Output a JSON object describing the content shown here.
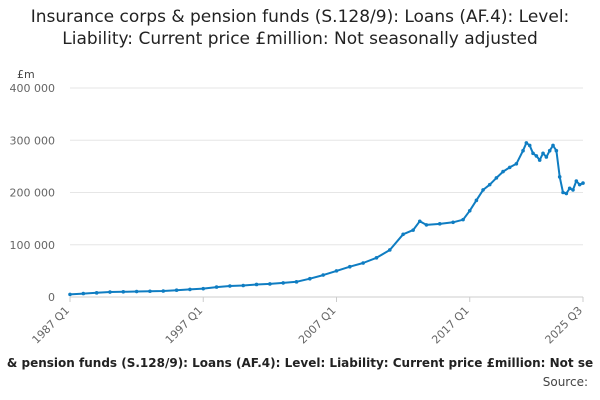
{
  "chart_data": {
    "type": "line",
    "title": "Insurance corps & pension funds (S.128/9): Loans (AF.4): Level: Liability: Current price £million: Not seasonally adjusted",
    "ylabel": "£m",
    "xlabel": "",
    "ylim": [
      0,
      400000
    ],
    "y_ticks": [
      "0",
      "100 000",
      "200 000",
      "300 000",
      "400 000"
    ],
    "y_tick_values": [
      0,
      100000,
      200000,
      300000,
      400000
    ],
    "x_ticks": [
      "1987 Q1",
      "1997 Q1",
      "2007 Q1",
      "2017 Q1",
      "2025 Q3"
    ],
    "grid": "horizontal",
    "color": "#0f7dc2",
    "series": [
      {
        "name": "& pension funds (S.128/9): Loans (AF.4): Level: Liability: Current price £million: Not se",
        "points": [
          [
            "1987 Q1",
            5000
          ],
          [
            "1988 Q1",
            6500
          ],
          [
            "1989 Q1",
            8000
          ],
          [
            "1990 Q1",
            9500
          ],
          [
            "1991 Q1",
            10000
          ],
          [
            "1992 Q1",
            10500
          ],
          [
            "1993 Q1",
            11000
          ],
          [
            "1994 Q1",
            11500
          ],
          [
            "1995 Q1",
            13000
          ],
          [
            "1996 Q1",
            14500
          ],
          [
            "1997 Q1",
            16000
          ],
          [
            "1998 Q1",
            19000
          ],
          [
            "1999 Q1",
            21000
          ],
          [
            "2000 Q1",
            22000
          ],
          [
            "2001 Q1",
            24000
          ],
          [
            "2002 Q1",
            25000
          ],
          [
            "2003 Q1",
            27000
          ],
          [
            "2004 Q1",
            29000
          ],
          [
            "2005 Q1",
            35000
          ],
          [
            "2006 Q1",
            42000
          ],
          [
            "2007 Q1",
            50000
          ],
          [
            "2008 Q1",
            58000
          ],
          [
            "2009 Q1",
            65000
          ],
          [
            "2010 Q1",
            75000
          ],
          [
            "2011 Q1",
            90000
          ],
          [
            "2012 Q1",
            120000
          ],
          [
            "2012 Q4",
            128000
          ],
          [
            "2013 Q2",
            145000
          ],
          [
            "2013 Q4",
            138000
          ],
          [
            "2014 Q4",
            140000
          ],
          [
            "2015 Q4",
            143000
          ],
          [
            "2016 Q3",
            148000
          ],
          [
            "2017 Q1",
            165000
          ],
          [
            "2017 Q3",
            185000
          ],
          [
            "2018 Q1",
            205000
          ],
          [
            "2018 Q3",
            215000
          ],
          [
            "2019 Q1",
            228000
          ],
          [
            "2019 Q3",
            240000
          ],
          [
            "2020 Q1",
            248000
          ],
          [
            "2020 Q3",
            255000
          ],
          [
            "2021 Q1",
            280000
          ],
          [
            "2021 Q2",
            295000
          ],
          [
            "2021 Q3",
            290000
          ],
          [
            "2021 Q4",
            275000
          ],
          [
            "2022 Q1",
            270000
          ],
          [
            "2022 Q2",
            262000
          ],
          [
            "2022 Q3",
            275000
          ],
          [
            "2022 Q4",
            268000
          ],
          [
            "2023 Q1",
            280000
          ],
          [
            "2023 Q2",
            290000
          ],
          [
            "2023 Q3",
            280000
          ],
          [
            "2023 Q4",
            230000
          ],
          [
            "2024 Q1",
            200000
          ],
          [
            "2024 Q2",
            198000
          ],
          [
            "2024 Q3",
            208000
          ],
          [
            "2024 Q4",
            205000
          ],
          [
            "2025 Q1",
            222000
          ],
          [
            "2025 Q2",
            215000
          ],
          [
            "2025 Q3",
            218000
          ]
        ]
      }
    ],
    "source_label": "Source:"
  }
}
